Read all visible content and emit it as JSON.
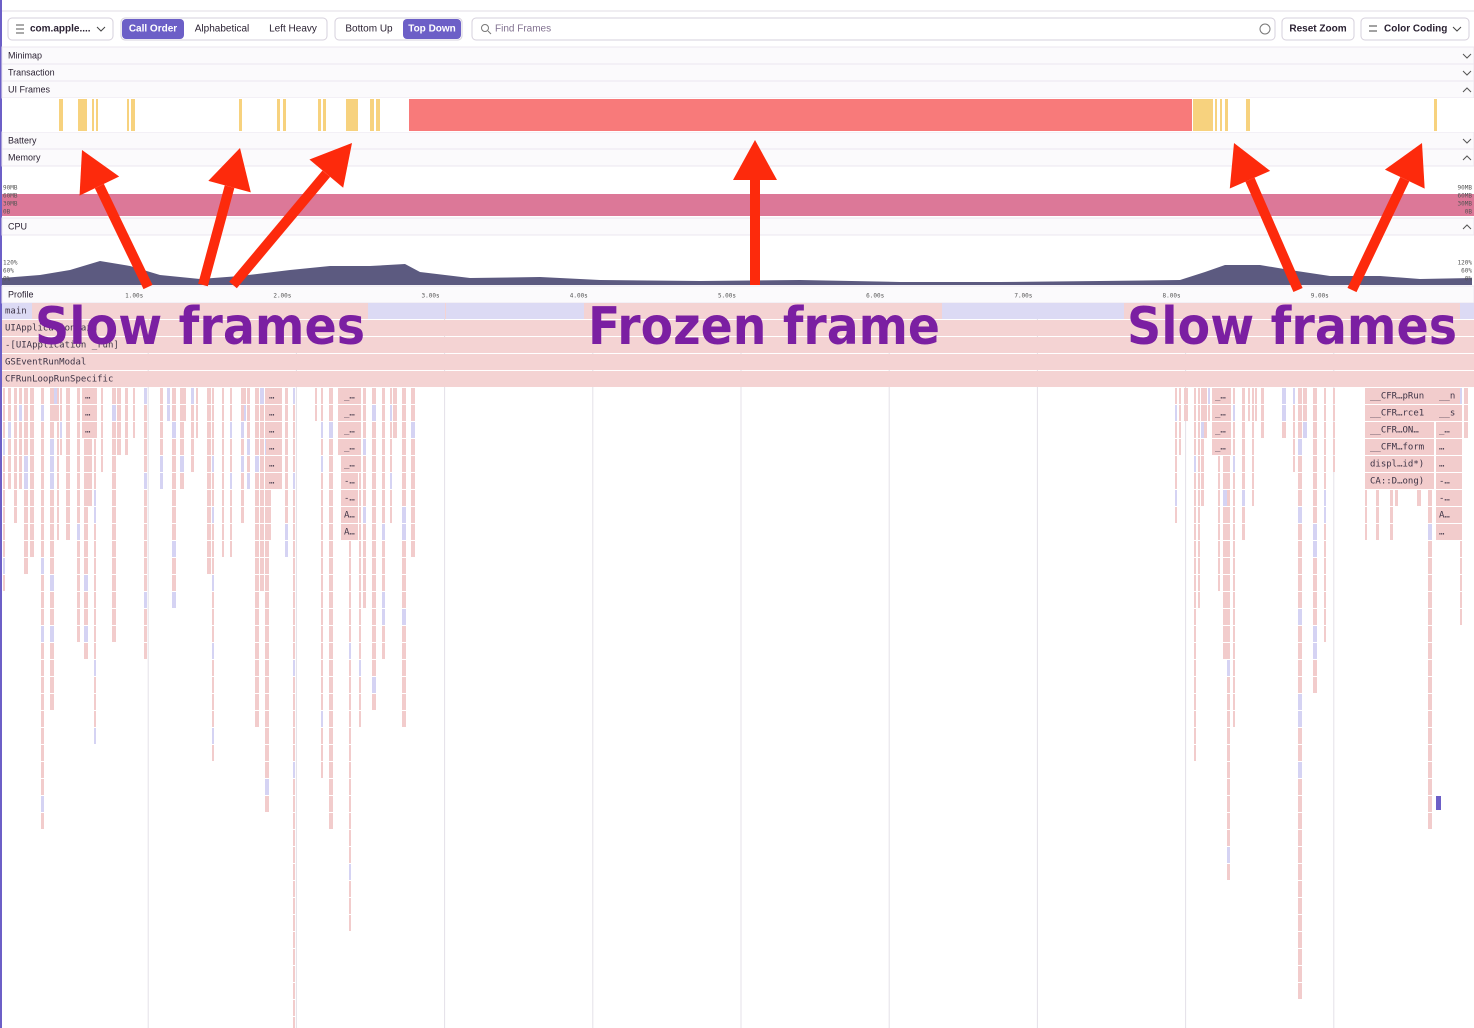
{
  "toolbar": {
    "app_selector": "com.apple....",
    "sort_options": [
      "Call Order",
      "Alphabetical",
      "Left Heavy"
    ],
    "view_options": [
      "Bottom Up",
      "Top Down"
    ],
    "search_placeholder": "Find Frames",
    "reset_zoom": "Reset Zoom",
    "color_coding": "Color Coding"
  },
  "sections": [
    "Minimap",
    "Transaction",
    "UI Frames",
    "Battery",
    "Memory",
    "CPU",
    "Profile"
  ],
  "memory_axis": [
    "90MB",
    "60MB",
    "30MB",
    "0B"
  ],
  "cpu_axis": [
    "120%",
    "60%",
    "0%"
  ],
  "time_axis": [
    "1.00s",
    "2.00s",
    "3.00s",
    "4.00s",
    "5.00s",
    "6.00s",
    "7.00s",
    "8.00s",
    "9.00s"
  ],
  "stack": [
    "main",
    "UIApplicationMain",
    "-[UIApplication _run]",
    "GSEventRunModal",
    "CFRunLoopRunSpecific"
  ],
  "frame_labels": [
    "…",
    "…",
    "…",
    "…",
    "…",
    "…",
    "…",
    "…",
    "…",
    "_…",
    "_…",
    "_…",
    "_…",
    "_…",
    "-…",
    "-…",
    "A…",
    "A…",
    "_…",
    "_…",
    "_…",
    "_…",
    "__CFR…pRun",
    "__CFR…rce1",
    "__CFR…ON…",
    "__CFM…form",
    "displ…id*)",
    "CA::D…ong)",
    "__n",
    "__s",
    "_…",
    "…",
    "…",
    "-…",
    "-…",
    "A…",
    "…"
  ],
  "annotations": [
    "Slow frames",
    "Frozen frame",
    "Slow frames"
  ]
}
